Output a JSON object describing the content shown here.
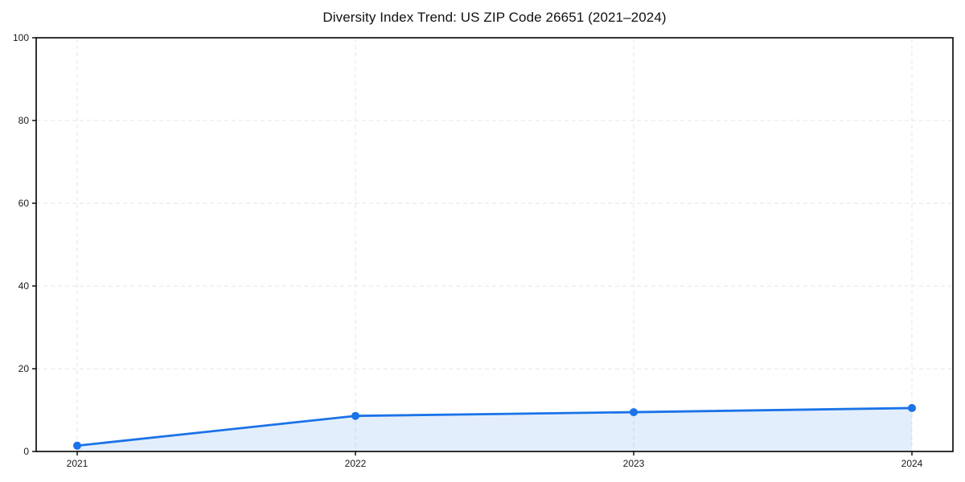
{
  "chart_data": {
    "type": "area",
    "title": "Diversity Index Trend: US ZIP Code 26651 (2021–2024)",
    "categories": [
      "2021",
      "2022",
      "2023",
      "2024"
    ],
    "series": [
      {
        "name": "Diversity Index",
        "values": [
          1.4,
          8.6,
          9.5,
          10.5
        ]
      }
    ],
    "xlabel": "",
    "ylabel": "",
    "ylim": [
      0,
      100
    ],
    "yticks": [
      0,
      20,
      40,
      60,
      80,
      100
    ],
    "grid": "dashed-both-axes",
    "legend_position": "none",
    "colors": {
      "line": "#1a73e8",
      "marker": "#1a73e8",
      "area_fill": "rgba(26,115,232,0.12)",
      "gridline": "#e4e4e4",
      "spine": "#000000",
      "tick_label": "#1a1a1a",
      "title": "#111111",
      "background": "#ffffff"
    }
  }
}
